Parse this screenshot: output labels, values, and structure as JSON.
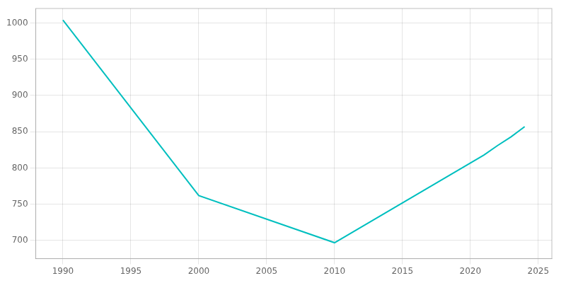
{
  "chart_data": {
    "type": "line",
    "x": [
      1990,
      2000,
      2010,
      2021,
      2022,
      2023,
      2024
    ],
    "values": [
      1004,
      762,
      697,
      818,
      831,
      843,
      857
    ],
    "color": "#00BFBF",
    "xlim": [
      1988,
      2026
    ],
    "ylim": [
      675,
      1020
    ],
    "xticks": [
      1990,
      1995,
      2000,
      2005,
      2010,
      2015,
      2020,
      2025
    ],
    "yticks": [
      700,
      750,
      800,
      850,
      900,
      950,
      1000
    ],
    "grid": true
  }
}
